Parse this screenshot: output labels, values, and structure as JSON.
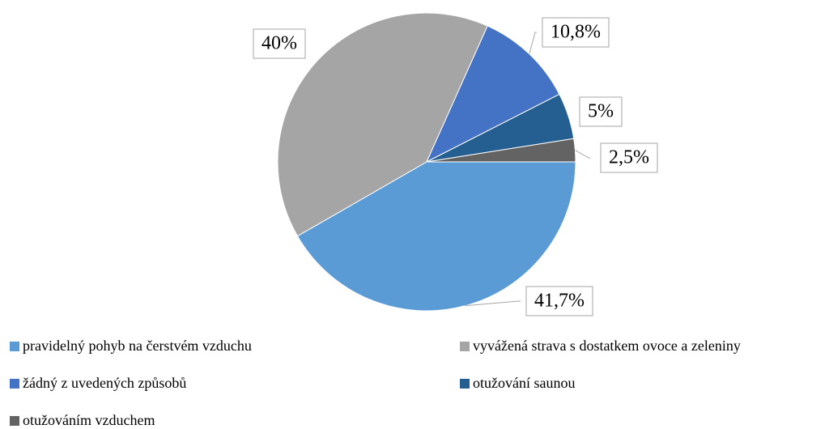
{
  "chart_data": {
    "type": "pie",
    "categories": [
      "pravidelný pohyb na čerstvém vzduchu",
      "vyvážená strava s dostatkem ovoce a zeleniny",
      "žádný z uvedených způsobů",
      "otužování saunou",
      "otužováním vzduchem"
    ],
    "values": [
      41.7,
      40,
      10.8,
      5,
      2.5
    ],
    "value_labels": [
      "41,7%",
      "40%",
      "10,8%",
      "5%",
      "2,5%"
    ],
    "colors": [
      "#5b9bd5",
      "#a5a5a5",
      "#4472c4",
      "#255e91",
      "#636363"
    ],
    "legend": "bottom"
  }
}
